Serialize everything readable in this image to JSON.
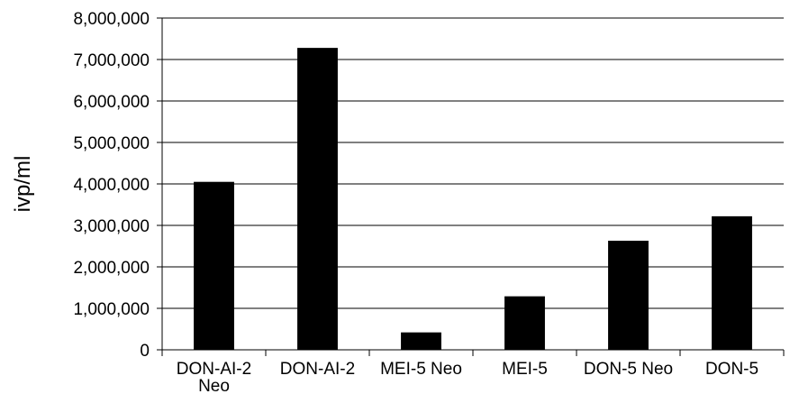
{
  "chart_data": {
    "type": "bar",
    "title": "",
    "xlabel": "",
    "ylabel": "ivp/ml",
    "categories": [
      [
        "DON-AI-2",
        "Neo"
      ],
      [
        "DON-AI-2"
      ],
      [
        "MEI-5 Neo"
      ],
      [
        "MEI-5"
      ],
      [
        "DON-5 Neo"
      ],
      [
        "DON-5"
      ]
    ],
    "values": [
      4050000,
      7280000,
      420000,
      1290000,
      2630000,
      3220000
    ],
    "ylim": [
      0,
      8000000
    ],
    "yticks": [
      0,
      1000000,
      2000000,
      3000000,
      4000000,
      5000000,
      6000000,
      7000000,
      8000000
    ],
    "ytick_labels": [
      "0",
      "1,000,000",
      "2,000,000",
      "3,000,000",
      "4,000,000",
      "5,000,000",
      "6,000,000",
      "7,000,000",
      "8,000,000"
    ],
    "grid": "horizontal",
    "legend": "none",
    "bar_color": "#000000",
    "grid_color": "#000000"
  }
}
